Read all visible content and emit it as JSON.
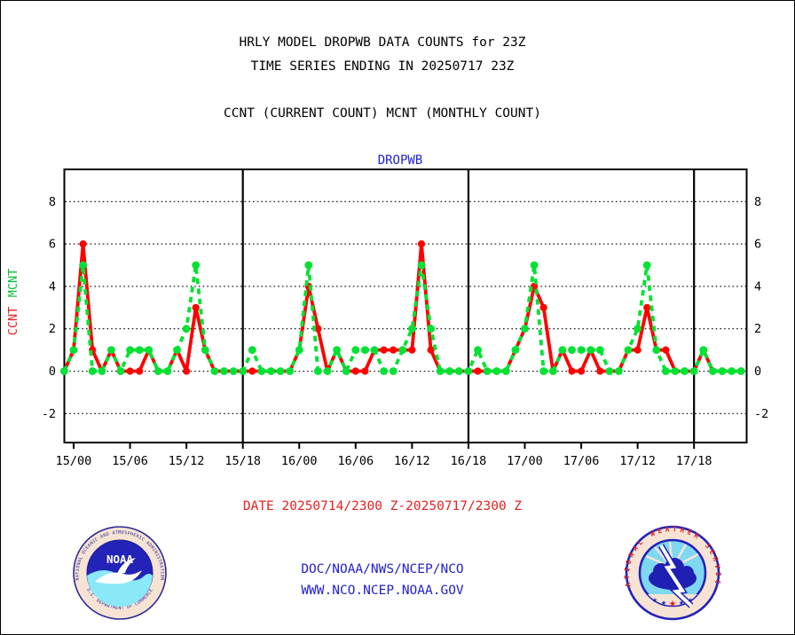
{
  "header": {
    "title_line1": "HRLY MODEL DROPWB DATA COUNTS for 23Z",
    "title_line2": "TIME SERIES ENDING IN 20250717 23Z",
    "subtitle": "CCNT (CURRENT COUNT) MCNT (MONTHLY COUNT)"
  },
  "chart": {
    "label": "DROPWB",
    "label_color": "#2222cc",
    "left_axis": {
      "mcnt": "MCNT",
      "ccnt": "CCNT"
    }
  },
  "chart_data": {
    "type": "line",
    "title": "DROPWB",
    "x_axis": {
      "start": "14/23",
      "end": "17/23",
      "step_hours": 1,
      "points": 73
    },
    "x_tick_labels": [
      "15/00",
      "15/06",
      "15/12",
      "15/18",
      "16/00",
      "16/06",
      "16/12",
      "16/18",
      "17/00",
      "17/06",
      "17/12",
      "17/18"
    ],
    "x_tick_indices": [
      1,
      7,
      13,
      19,
      25,
      31,
      37,
      43,
      49,
      55,
      61,
      67
    ],
    "day_divider_indices": [
      19,
      43,
      67
    ],
    "y_ticks": [
      -2,
      0,
      2,
      4,
      6,
      8
    ],
    "ylim": [
      -3.4,
      9.5
    ],
    "grid": "dotted",
    "series": [
      {
        "name": "CCNT",
        "color": "#ff0000",
        "style": "solid",
        "values": [
          0,
          1,
          6,
          1,
          0,
          1,
          0,
          0,
          0,
          1,
          0,
          0,
          1,
          0,
          3,
          1,
          0,
          0,
          0,
          0,
          0,
          0,
          0,
          0,
          0,
          1,
          4,
          2,
          0,
          1,
          0,
          0,
          0,
          1,
          1,
          1,
          1,
          1,
          6,
          1,
          0,
          0,
          0,
          0,
          0,
          0,
          0,
          0,
          1,
          2,
          4,
          3,
          0,
          1,
          0,
          0,
          1,
          0,
          0,
          0,
          1,
          1,
          3,
          1,
          1,
          0,
          0,
          0,
          1,
          0,
          0,
          0,
          0
        ]
      },
      {
        "name": "MCNT",
        "color": "#00e232",
        "style": "dashed",
        "values": [
          0,
          1,
          5,
          0,
          0,
          1,
          0,
          1,
          1,
          1,
          0,
          0,
          1,
          2,
          5,
          1,
          0,
          0,
          0,
          0,
          1,
          0,
          0,
          0,
          0,
          1,
          5,
          0,
          0,
          1,
          0,
          1,
          1,
          1,
          0,
          0,
          1,
          2,
          5,
          2,
          0,
          0,
          0,
          0,
          1,
          0,
          0,
          0,
          1,
          2,
          5,
          0,
          0,
          1,
          1,
          1,
          1,
          1,
          0,
          0,
          1,
          2,
          5,
          1,
          0,
          0,
          0,
          0,
          1,
          0,
          0,
          0,
          0
        ]
      }
    ]
  },
  "footer": {
    "date_range": "DATE 20250714/2300 Z-20250717/2300 Z",
    "org_line": "DOC/NOAA/NWS/NCEP/NCO",
    "url_line": "WWW.NCO.NCEP.NOAA.GOV"
  },
  "logos": {
    "noaa": {
      "acronym": "NOAA",
      "arc_top": "NATIONAL OCEANIC AND ATMOSPHERIC ADMINISTRATION",
      "arc_bottom": "U.S. DEPARTMENT OF COMMERCE"
    },
    "nws": {
      "arc": "NATIONAL WEATHER SERVICE"
    }
  }
}
